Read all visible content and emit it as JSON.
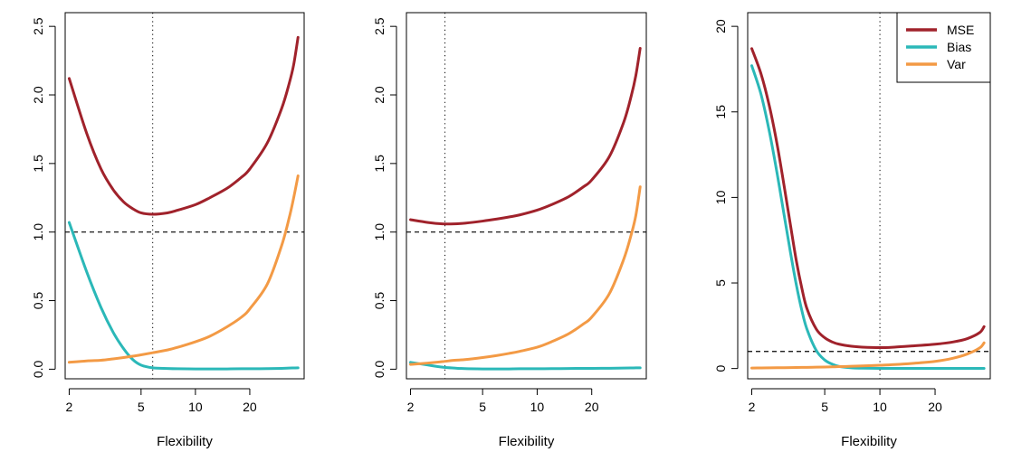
{
  "colors": {
    "mse": "#A0222B",
    "bias": "#2BB8B8",
    "var": "#F39A45",
    "axis": "#000000"
  },
  "legend": {
    "location": "top-right of third panel",
    "entries": [
      {
        "label": "MSE",
        "color": "#A0222B"
      },
      {
        "label": "Bias",
        "color": "#2BB8B8"
      },
      {
        "label": "Var",
        "color": "#F39A45"
      }
    ]
  },
  "chart_data": [
    {
      "type": "line",
      "xlabel": "Flexibility",
      "x_scale": "log",
      "xlim": [
        1.9,
        40
      ],
      "ylim": [
        -0.07,
        2.6
      ],
      "x_ticks": [
        2,
        5,
        10,
        20
      ],
      "y_ticks": [
        0,
        0.5,
        1,
        1.5,
        2,
        2.5
      ],
      "y_tick_labels": [
        "0.0",
        "0.5",
        "1.0",
        "1.5",
        "2.0",
        "2.5"
      ],
      "hline": 1.0,
      "vline": 5.8,
      "x": [
        2,
        2.5,
        3,
        3.5,
        4,
        4.5,
        5,
        5.8,
        7,
        8,
        10,
        12,
        15,
        18,
        20,
        25,
        30,
        33,
        35,
        37
      ],
      "series": [
        {
          "name": "MSE",
          "y": [
            2.12,
            1.72,
            1.46,
            1.31,
            1.22,
            1.17,
            1.14,
            1.13,
            1.14,
            1.16,
            1.2,
            1.25,
            1.32,
            1.4,
            1.46,
            1.65,
            1.9,
            2.08,
            2.22,
            2.42
          ]
        },
        {
          "name": "Bias",
          "y": [
            1.07,
            0.71,
            0.45,
            0.27,
            0.15,
            0.07,
            0.03,
            0.01,
            0.005,
            0.003,
            0.002,
            0.002,
            0.002,
            0.003,
            0.003,
            0.004,
            0.006,
            0.008,
            0.009,
            0.01
          ]
        },
        {
          "name": "Var",
          "y": [
            0.05,
            0.06,
            0.065,
            0.075,
            0.085,
            0.095,
            0.105,
            0.12,
            0.14,
            0.16,
            0.2,
            0.24,
            0.31,
            0.38,
            0.44,
            0.62,
            0.9,
            1.1,
            1.25,
            1.41
          ]
        }
      ]
    },
    {
      "type": "line",
      "xlabel": "Flexibility",
      "x_scale": "log",
      "xlim": [
        1.9,
        40
      ],
      "ylim": [
        -0.07,
        2.6
      ],
      "x_ticks": [
        2,
        5,
        10,
        20
      ],
      "y_ticks": [
        0,
        0.5,
        1,
        1.5,
        2,
        2.5
      ],
      "y_tick_labels": [
        "0.0",
        "0.5",
        "1.0",
        "1.5",
        "2.0",
        "2.5"
      ],
      "hline": 1.0,
      "vline": 3.1,
      "x": [
        2,
        2.5,
        3,
        3.5,
        4,
        5,
        6,
        7,
        8,
        10,
        12,
        15,
        18,
        20,
        25,
        30,
        33,
        35,
        37
      ],
      "series": [
        {
          "name": "MSE",
          "y": [
            1.09,
            1.07,
            1.06,
            1.06,
            1.065,
            1.08,
            1.095,
            1.11,
            1.125,
            1.16,
            1.2,
            1.26,
            1.33,
            1.38,
            1.55,
            1.8,
            1.99,
            2.14,
            2.34
          ]
        },
        {
          "name": "Bias",
          "y": [
            0.05,
            0.03,
            0.015,
            0.008,
            0.004,
            0.002,
            0.002,
            0.002,
            0.003,
            0.003,
            0.004,
            0.005,
            0.006,
            0.006,
            0.007,
            0.008,
            0.009,
            0.01,
            0.01
          ]
        },
        {
          "name": "Var",
          "y": [
            0.035,
            0.045,
            0.055,
            0.065,
            0.07,
            0.085,
            0.1,
            0.115,
            0.13,
            0.16,
            0.2,
            0.26,
            0.33,
            0.38,
            0.55,
            0.8,
            0.98,
            1.12,
            1.33
          ]
        }
      ]
    },
    {
      "type": "line",
      "xlabel": "Flexibility",
      "x_scale": "log",
      "xlim": [
        1.9,
        40
      ],
      "ylim": [
        -0.6,
        20.8
      ],
      "x_ticks": [
        2,
        5,
        10,
        20
      ],
      "y_ticks": [
        0,
        5,
        10,
        15,
        20
      ],
      "y_tick_labels": [
        "0",
        "5",
        "10",
        "15",
        "20"
      ],
      "hline": 1.0,
      "vline": 10,
      "x": [
        2,
        2.25,
        2.5,
        2.75,
        3,
        3.25,
        3.5,
        3.75,
        4,
        4.5,
        5,
        5.5,
        6,
        7,
        8,
        10,
        12,
        15,
        20,
        25,
        30,
        35,
        37
      ],
      "series": [
        {
          "name": "MSE",
          "y": [
            18.7,
            17.2,
            15.3,
            13.1,
            10.7,
            8.4,
            6.3,
            4.7,
            3.5,
            2.3,
            1.8,
            1.55,
            1.42,
            1.3,
            1.25,
            1.22,
            1.25,
            1.32,
            1.42,
            1.55,
            1.75,
            2.1,
            2.45
          ]
        },
        {
          "name": "Bias",
          "y": [
            17.7,
            16.0,
            13.8,
            11.4,
            9.0,
            6.8,
            4.9,
            3.4,
            2.3,
            1.05,
            0.5,
            0.25,
            0.12,
            0.04,
            0.02,
            0.01,
            0.01,
            0.01,
            0.01,
            0.01,
            0.01,
            0.01,
            0.01
          ]
        },
        {
          "name": "Var",
          "y": [
            0.03,
            0.035,
            0.04,
            0.045,
            0.05,
            0.055,
            0.06,
            0.065,
            0.07,
            0.08,
            0.09,
            0.1,
            0.11,
            0.13,
            0.15,
            0.19,
            0.23,
            0.3,
            0.42,
            0.6,
            0.85,
            1.2,
            1.5
          ]
        }
      ]
    }
  ]
}
